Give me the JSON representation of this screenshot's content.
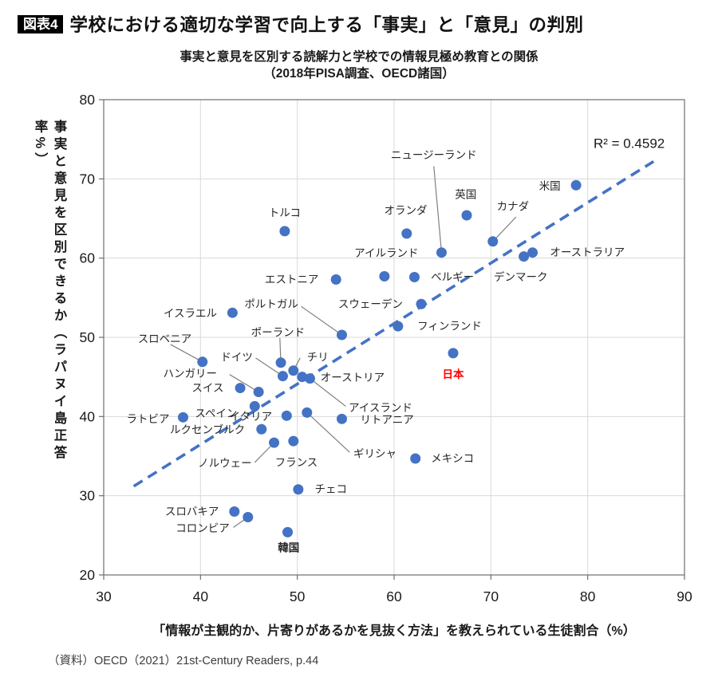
{
  "figure_tag": "図表4",
  "title": "学校における適切な学習で向上する「事実」と「意見」の判別",
  "subtitle_line1": "事実と意見を区別する読解力と学校での情報見極め教育との関係",
  "subtitle_line2": "（2018年PISA調査、OECD諸国）",
  "source": "（資料）OECD（2021）21st-Century Readers, p.44",
  "colors": {
    "dot": "#4472C4",
    "trend": "#4472C4",
    "grid": "#D9D9D9",
    "border": "#6E6E6E",
    "leader": "#808080",
    "label": "#262626",
    "tick": "#1A1A1A",
    "japan_label": "#FF0000"
  },
  "chart_data": {
    "type": "scatter",
    "title": "事実と意見を区別する読解力と学校での情報見極め教育との関係（2018年PISA調査、OECD諸国）",
    "xlabel": "「情報が主観的か、片寄りがあるかを見抜く方法」を教えられている生徒割合（%）",
    "ylabel": "事実と意見を区別できるか（ラパヌイ島正答率%）",
    "xlim": [
      30,
      90
    ],
    "ylim": [
      20,
      80
    ],
    "xticks": [
      30,
      40,
      50,
      60,
      70,
      80,
      90
    ],
    "yticks": [
      20,
      30,
      40,
      50,
      60,
      70,
      80
    ],
    "grid": true,
    "r2_label": "R² = 0.4592",
    "r2_pos": [
      80.6,
      73.9
    ],
    "trendline": {
      "x1": 33.1,
      "y1": 31.2,
      "x2": 86.8,
      "y2": 72.2,
      "style": "dashed"
    },
    "points": [
      {
        "name": "米国",
        "x": 78.8,
        "y": 69.2,
        "lx": 77.2,
        "ly": 69.1,
        "anchor": "end"
      },
      {
        "name": "英国",
        "x": 67.5,
        "y": 65.4,
        "lx": 67.4,
        "ly": 68.0,
        "anchor": "middle"
      },
      {
        "name": "カナダ",
        "x": 70.2,
        "y": 62.1,
        "lx": 70.6,
        "ly": 66.5,
        "anchor": "start",
        "leader": [
          72.6,
          65.2
        ]
      },
      {
        "name": "ニュージーランド",
        "x": 64.9,
        "y": 60.7,
        "lx": 64.1,
        "ly": 73.0,
        "anchor": "middle",
        "leader": [
          64.1,
          71.6
        ]
      },
      {
        "name": "オランダ",
        "x": 61.3,
        "y": 63.1,
        "lx": 61.2,
        "ly": 66.0,
        "anchor": "middle"
      },
      {
        "name": "オーストラリア",
        "x": 74.3,
        "y": 60.7,
        "lx": 76.1,
        "ly": 60.7,
        "anchor": "start"
      },
      {
        "name": "デンマーク",
        "x": 73.4,
        "y": 60.2,
        "lx": 70.3,
        "ly": 57.6,
        "anchor": "start"
      },
      {
        "name": "トルコ",
        "x": 48.7,
        "y": 63.4,
        "lx": 48.7,
        "ly": 65.7,
        "anchor": "middle"
      },
      {
        "name": "アイルランド",
        "x": 59.0,
        "y": 57.7,
        "lx": 59.2,
        "ly": 60.6,
        "anchor": "middle"
      },
      {
        "name": "ベルギー",
        "x": 62.1,
        "y": 57.6,
        "lx": 63.8,
        "ly": 57.6,
        "anchor": "start"
      },
      {
        "name": "エストニア",
        "x": 54.0,
        "y": 57.3,
        "lx": 52.2,
        "ly": 57.3,
        "anchor": "end"
      },
      {
        "name": "スウェーデン",
        "x": 62.8,
        "y": 54.2,
        "lx": 60.9,
        "ly": 54.2,
        "anchor": "end"
      },
      {
        "name": "ポルトガル",
        "x": 54.6,
        "y": 50.3,
        "lx": 50.1,
        "ly": 54.2,
        "anchor": "end",
        "leader": [
          50.4,
          53.9
        ]
      },
      {
        "name": "フィンランド",
        "x": 60.4,
        "y": 51.4,
        "lx": 62.4,
        "ly": 51.4,
        "anchor": "start"
      },
      {
        "name": "日本",
        "x": 66.1,
        "y": 48.0,
        "lx": 66.1,
        "ly": 45.3,
        "anchor": "middle",
        "color": "#FF0000",
        "bold": true
      },
      {
        "name": "イスラエル",
        "x": 43.3,
        "y": 53.1,
        "lx": 41.7,
        "ly": 53.0,
        "anchor": "end"
      },
      {
        "name": "スロベニア",
        "x": 40.2,
        "y": 46.9,
        "lx": 36.3,
        "ly": 49.8,
        "anchor": "middle",
        "leader": [
          36.9,
          49.1
        ]
      },
      {
        "name": "ポーランド",
        "x": 48.3,
        "y": 46.8,
        "lx": 48.0,
        "ly": 50.6,
        "anchor": "middle",
        "leader": [
          48.2,
          49.9
        ]
      },
      {
        "name": "ドイツ",
        "x": 48.5,
        "y": 45.1,
        "lx": 45.4,
        "ly": 47.5,
        "anchor": "end",
        "leader": [
          45.7,
          47.4
        ]
      },
      {
        "name": "チリ",
        "x": 49.6,
        "y": 45.8,
        "lx": 51.0,
        "ly": 47.5,
        "anchor": "start",
        "leader": [
          50.3,
          47.4
        ]
      },
      {
        "name": "オーストリア",
        "x": 50.5,
        "y": 45.0,
        "lx": 52.4,
        "ly": 44.9,
        "anchor": "start"
      },
      {
        "name": "アイスランド",
        "x": 51.3,
        "y": 44.8,
        "lx": 55.3,
        "ly": 41.1,
        "anchor": "start",
        "leader": [
          55.0,
          41.3
        ]
      },
      {
        "name": "ハンガリー",
        "x": 46.0,
        "y": 43.1,
        "lx": 41.7,
        "ly": 45.4,
        "anchor": "end",
        "leader": [
          43.0,
          45.3
        ]
      },
      {
        "name": "スイス",
        "x": 44.1,
        "y": 43.6,
        "lx": 42.4,
        "ly": 43.6,
        "anchor": "end"
      },
      {
        "name": "スペイン",
        "x": 45.6,
        "y": 41.3,
        "lx": 43.8,
        "ly": 40.4,
        "anchor": "end"
      },
      {
        "name": "ラトビア",
        "x": 38.2,
        "y": 39.9,
        "lx": 36.8,
        "ly": 39.7,
        "anchor": "end"
      },
      {
        "name": "イタリア",
        "x": 48.9,
        "y": 40.1,
        "lx": 47.4,
        "ly": 40.0,
        "anchor": "end"
      },
      {
        "name": "ルクセンブルク",
        "x": 46.3,
        "y": 38.4,
        "lx": 44.6,
        "ly": 38.3,
        "anchor": "end"
      },
      {
        "name": "ギリシャ",
        "x": 51.0,
        "y": 40.5,
        "lx": 55.8,
        "ly": 35.3,
        "anchor": "start",
        "leader": [
          55.4,
          35.5
        ]
      },
      {
        "name": "リトアニア",
        "x": 54.6,
        "y": 39.7,
        "lx": 56.5,
        "ly": 39.6,
        "anchor": "start"
      },
      {
        "name": "ノルウェー",
        "x": 47.6,
        "y": 36.7,
        "lx": 45.3,
        "ly": 34.1,
        "anchor": "end",
        "leader": [
          45.6,
          34.2
        ]
      },
      {
        "name": "フランス",
        "x": 49.6,
        "y": 36.9,
        "lx": 49.9,
        "ly": 34.2,
        "anchor": "middle"
      },
      {
        "name": "メキシコ",
        "x": 62.2,
        "y": 34.7,
        "lx": 63.8,
        "ly": 34.7,
        "anchor": "start"
      },
      {
        "name": "チェコ",
        "x": 50.1,
        "y": 30.8,
        "lx": 51.8,
        "ly": 30.8,
        "anchor": "start"
      },
      {
        "name": "スロバキア",
        "x": 43.5,
        "y": 28.0,
        "lx": 41.9,
        "ly": 28.0,
        "anchor": "end"
      },
      {
        "name": "コロンビア",
        "x": 44.9,
        "y": 27.3,
        "lx": 43.0,
        "ly": 25.9,
        "anchor": "end",
        "leader": [
          43.4,
          26.0
        ]
      },
      {
        "name": "韓国",
        "x": 49.0,
        "y": 25.4,
        "lx": 49.1,
        "ly": 23.4,
        "anchor": "middle",
        "bold": true
      }
    ]
  }
}
